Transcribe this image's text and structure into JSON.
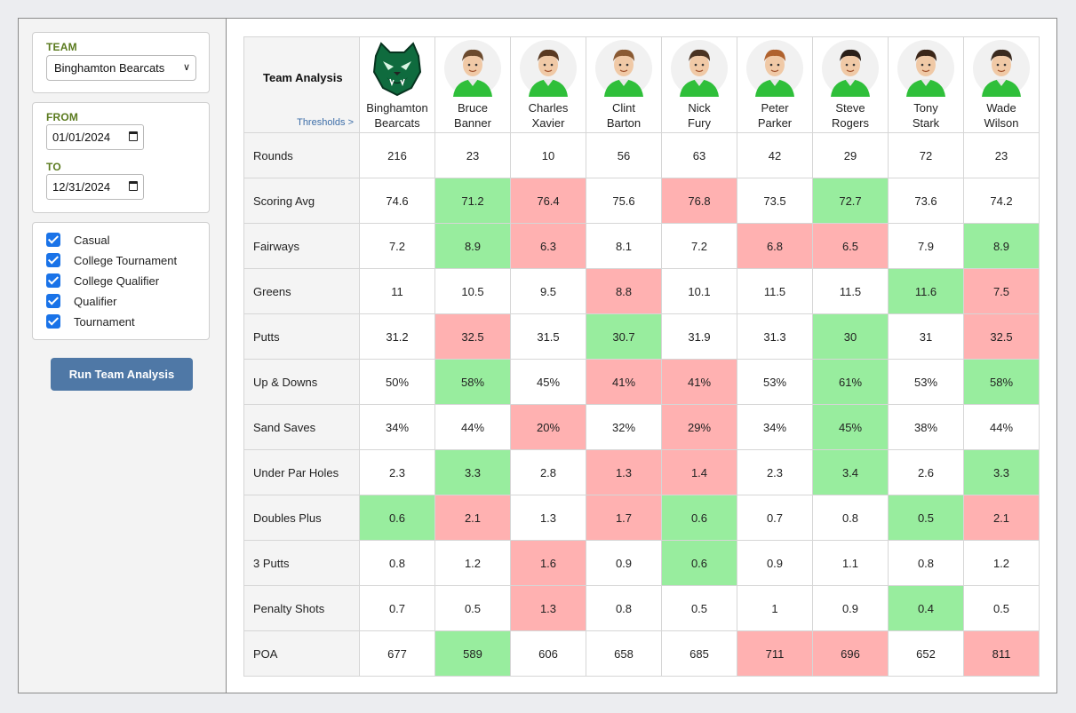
{
  "sidebar": {
    "team_label": "TEAM",
    "team_value": "Binghamton Bearcats",
    "from_label": "FROM",
    "from_value": "01/01/2024",
    "to_label": "TO",
    "to_value": "12/31/2024",
    "event_types": [
      {
        "label": "Casual",
        "checked": true
      },
      {
        "label": "College Tournament",
        "checked": true
      },
      {
        "label": "College Qualifier",
        "checked": true
      },
      {
        "label": "Qualifier",
        "checked": true
      },
      {
        "label": "Tournament",
        "checked": true
      }
    ],
    "run_button": "Run Team Analysis"
  },
  "table": {
    "title": "Team Analysis",
    "thresholds_link": "Thresholds >",
    "columns": [
      {
        "line1": "Binghamton",
        "line2": "Bearcats",
        "kind": "team"
      },
      {
        "line1": "Bruce",
        "line2": "Banner",
        "kind": "player"
      },
      {
        "line1": "Charles",
        "line2": "Xavier",
        "kind": "player"
      },
      {
        "line1": "Clint",
        "line2": "Barton",
        "kind": "player"
      },
      {
        "line1": "Nick",
        "line2": "Fury",
        "kind": "player"
      },
      {
        "line1": "Peter",
        "line2": "Parker",
        "kind": "player"
      },
      {
        "line1": "Steve",
        "line2": "Rogers",
        "kind": "player"
      },
      {
        "line1": "Tony",
        "line2": "Stark",
        "kind": "player"
      },
      {
        "line1": "Wade",
        "line2": "Wilson",
        "kind": "player"
      }
    ],
    "rows": [
      {
        "label": "Rounds",
        "values": [
          "216",
          "23",
          "10",
          "56",
          "63",
          "42",
          "29",
          "72",
          "23"
        ],
        "status": [
          "",
          "",
          "",
          "",
          "",
          "",
          "",
          "",
          ""
        ]
      },
      {
        "label": "Scoring Avg",
        "values": [
          "74.6",
          "71.2",
          "76.4",
          "75.6",
          "76.8",
          "73.5",
          "72.7",
          "73.6",
          "74.2"
        ],
        "status": [
          "",
          "good",
          "bad",
          "",
          "bad",
          "",
          "good",
          "",
          ""
        ]
      },
      {
        "label": "Fairways",
        "values": [
          "7.2",
          "8.9",
          "6.3",
          "8.1",
          "7.2",
          "6.8",
          "6.5",
          "7.9",
          "8.9"
        ],
        "status": [
          "",
          "good",
          "bad",
          "",
          "",
          "bad",
          "bad",
          "",
          "good"
        ]
      },
      {
        "label": "Greens",
        "values": [
          "11",
          "10.5",
          "9.5",
          "8.8",
          "10.1",
          "11.5",
          "11.5",
          "11.6",
          "7.5"
        ],
        "status": [
          "",
          "",
          "",
          "bad",
          "",
          "",
          "",
          "good",
          "bad"
        ]
      },
      {
        "label": "Putts",
        "values": [
          "31.2",
          "32.5",
          "31.5",
          "30.7",
          "31.9",
          "31.3",
          "30",
          "31",
          "32.5"
        ],
        "status": [
          "",
          "bad",
          "",
          "good",
          "",
          "",
          "good",
          "",
          "bad"
        ]
      },
      {
        "label": "Up & Downs",
        "values": [
          "50%",
          "58%",
          "45%",
          "41%",
          "41%",
          "53%",
          "61%",
          "53%",
          "58%"
        ],
        "status": [
          "",
          "good",
          "",
          "bad",
          "bad",
          "",
          "good",
          "",
          "good"
        ]
      },
      {
        "label": "Sand Saves",
        "values": [
          "34%",
          "44%",
          "20%",
          "32%",
          "29%",
          "34%",
          "45%",
          "38%",
          "44%"
        ],
        "status": [
          "",
          "",
          "bad",
          "",
          "bad",
          "",
          "good",
          "",
          ""
        ]
      },
      {
        "label": "Under Par Holes",
        "values": [
          "2.3",
          "3.3",
          "2.8",
          "1.3",
          "1.4",
          "2.3",
          "3.4",
          "2.6",
          "3.3"
        ],
        "status": [
          "",
          "good",
          "",
          "bad",
          "bad",
          "",
          "good",
          "",
          "good"
        ]
      },
      {
        "label": "Doubles Plus",
        "values": [
          "0.6",
          "2.1",
          "1.3",
          "1.7",
          "0.6",
          "0.7",
          "0.8",
          "0.5",
          "2.1"
        ],
        "status": [
          "good",
          "bad",
          "",
          "bad",
          "good",
          "",
          "",
          "good",
          "bad"
        ]
      },
      {
        "label": "3 Putts",
        "values": [
          "0.8",
          "1.2",
          "1.6",
          "0.9",
          "0.6",
          "0.9",
          "1.1",
          "0.8",
          "1.2"
        ],
        "status": [
          "",
          "",
          "bad",
          "",
          "good",
          "",
          "",
          "",
          ""
        ]
      },
      {
        "label": "Penalty Shots",
        "values": [
          "0.7",
          "0.5",
          "1.3",
          "0.8",
          "0.5",
          "1",
          "0.9",
          "0.4",
          "0.5"
        ],
        "status": [
          "",
          "",
          "bad",
          "",
          "",
          "",
          "",
          "good",
          ""
        ]
      },
      {
        "label": "POA",
        "values": [
          "677",
          "589",
          "606",
          "658",
          "685",
          "711",
          "696",
          "652",
          "811"
        ],
        "status": [
          "",
          "good",
          "",
          "",
          "",
          "bad",
          "bad",
          "",
          "bad"
        ]
      }
    ]
  },
  "colors": {
    "good": "#98ed9e",
    "bad": "#ffb1b1",
    "accent": "#4f78a6",
    "label_green": "#5a7a1e"
  }
}
